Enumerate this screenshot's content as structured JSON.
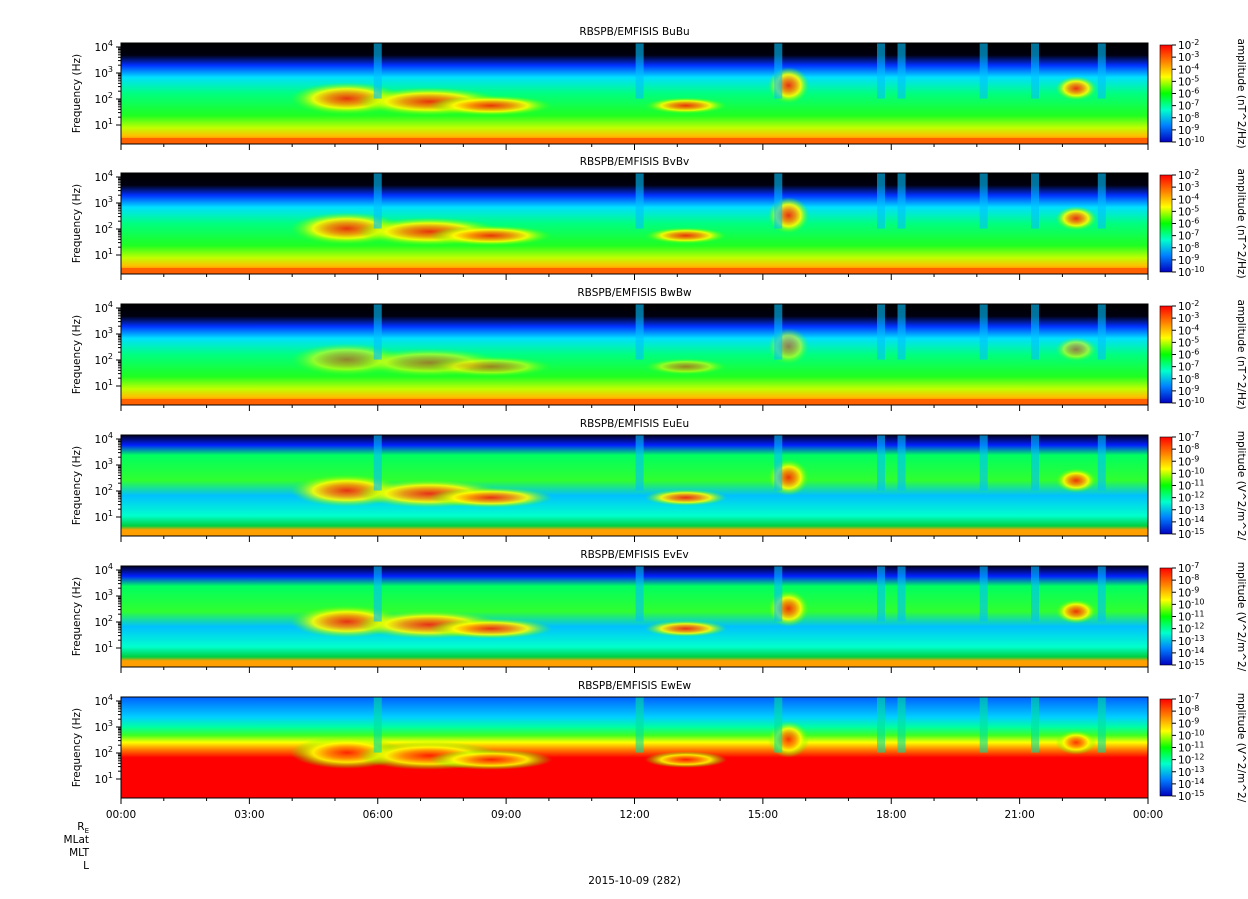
{
  "chart_data": [
    {
      "type": "heatmap",
      "title": "RBSPB/EMFISIS  BuBu",
      "ylabel": "Frequency (Hz)",
      "colorbar_label": "amplitude (nT^2/Hz)",
      "colorbar_ticks": [
        "10-2",
        "10-3",
        "10-4",
        "10-5",
        "10-6",
        "10-7",
        "10-8",
        "10-9",
        "10-10"
      ],
      "yticks": [
        "10^4",
        "10^3",
        "10^2",
        "10^1"
      ]
    },
    {
      "type": "heatmap",
      "title": "RBSPB/EMFISIS  BvBv",
      "ylabel": "Frequency (Hz)",
      "colorbar_label": "amplitude (nT^2/Hz)",
      "colorbar_ticks": [
        "10-2",
        "10-3",
        "10-4",
        "10-5",
        "10-6",
        "10-7",
        "10-8",
        "10-9",
        "10-10"
      ],
      "yticks": [
        "10^4",
        "10^3",
        "10^2",
        "10^1"
      ]
    },
    {
      "type": "heatmap",
      "title": "RBSPB/EMFISIS  BwBw",
      "ylabel": "Frequency (Hz)",
      "colorbar_label": "amplitude (nT^2/Hz)",
      "colorbar_ticks": [
        "10-2",
        "10-3",
        "10-4",
        "10-5",
        "10-6",
        "10-7",
        "10-8",
        "10-9",
        "10-10"
      ],
      "yticks": [
        "10^4",
        "10^3",
        "10^2",
        "10^1"
      ]
    },
    {
      "type": "heatmap",
      "title": "RBSPB/EMFISIS  EuEu",
      "ylabel": "Frequency (Hz)",
      "colorbar_label": "mplitude (V^2/m^2/",
      "colorbar_ticks": [
        "10-7",
        "10-8",
        "10-9",
        "10-10",
        "10-11",
        "10-12",
        "10-13",
        "10-14",
        "10-15"
      ],
      "yticks": [
        "10^4",
        "10^3",
        "10^2",
        "10^1"
      ]
    },
    {
      "type": "heatmap",
      "title": "RBSPB/EMFISIS  EvEv",
      "ylabel": "Frequency (Hz)",
      "colorbar_label": "mplitude (V^2/m^2/",
      "colorbar_ticks": [
        "10-7",
        "10-8",
        "10-9",
        "10-10",
        "10-11",
        "10-12",
        "10-13",
        "10-14",
        "10-15"
      ],
      "yticks": [
        "10^4",
        "10^3",
        "10^2",
        "10^1"
      ]
    },
    {
      "type": "heatmap",
      "title": "RBSPB/EMFISIS  EwEw",
      "ylabel": "Frequency (Hz)",
      "colorbar_label": "mplitude (V^2/m^2/",
      "colorbar_ticks": [
        "10-7",
        "10-8",
        "10-9",
        "10-10",
        "10-11",
        "10-12",
        "10-13",
        "10-14",
        "10-15"
      ],
      "yticks": [
        "10^4",
        "10^3",
        "10^2",
        "10^1"
      ]
    }
  ],
  "x_axis": {
    "ticks": [
      "00:00",
      "03:00",
      "06:00",
      "09:00",
      "12:00",
      "15:00",
      "18:00",
      "21:00",
      "00:00"
    ],
    "extra_labels": [
      "RE",
      "MLat",
      "MLT",
      "L"
    ],
    "date_label": "2015-10-09 (282)"
  },
  "colors": {
    "black": "#000000",
    "blue": "#0000ff",
    "cyan": "#00ffff",
    "green": "#00ff00",
    "yellow": "#ffff00",
    "orange": "#ff8000",
    "red": "#ff0000"
  }
}
